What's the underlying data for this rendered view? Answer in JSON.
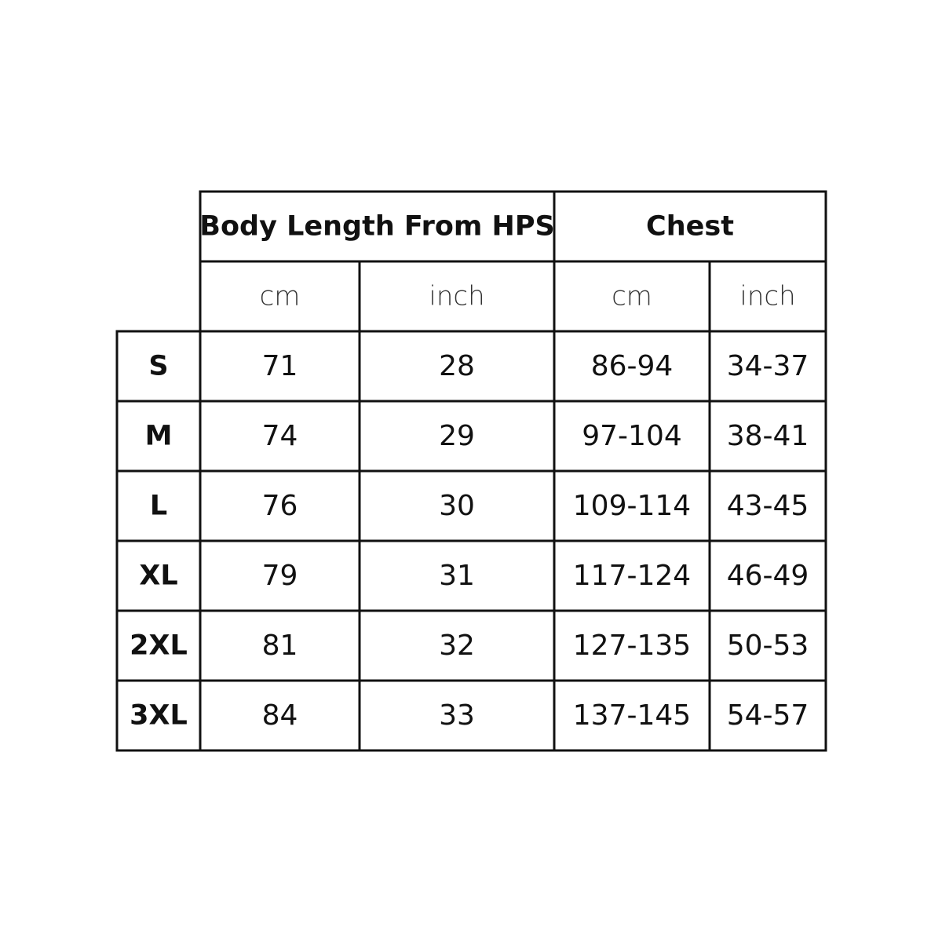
{
  "table": {
    "groups": [
      "Body Length From HPS",
      "Chest"
    ],
    "units": [
      "cm",
      "inch",
      "cm",
      "inch"
    ],
    "rows": [
      [
        "S",
        "71",
        "28",
        "86-94",
        "34-37"
      ],
      [
        "M",
        "74",
        "29",
        "97-104",
        "38-41"
      ],
      [
        "L",
        "76",
        "30",
        "109-114",
        "43-45"
      ],
      [
        "XL",
        "79",
        "31",
        "117-124",
        "46-49"
      ],
      [
        "2XL",
        "81",
        "32",
        "127-135",
        "50-53"
      ],
      [
        "3XL",
        "84",
        "33",
        "137-145",
        "54-57"
      ]
    ]
  }
}
